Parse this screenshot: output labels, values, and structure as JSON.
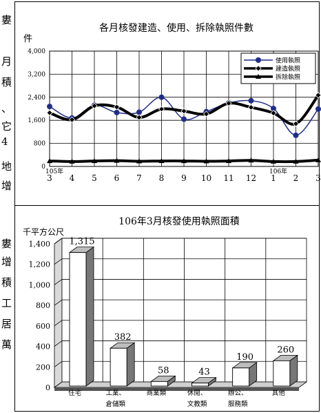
{
  "side_text": [
    "婁",
    "月",
    "積",
    "、",
    "它",
    "4",
    "地",
    "增",
    "婁",
    "增",
    "積",
    "工",
    "居",
    "萬"
  ],
  "chart_data": [
    {
      "type": "line",
      "title": "各月核發建造、使用、拆除執照件數",
      "ylabel": "件",
      "ylim": [
        0,
        4000
      ],
      "yticks": [
        "0",
        "800",
        "1,600",
        "2,400",
        "3,200",
        "4,000"
      ],
      "year_labels": [
        {
          "text": "105年",
          "at_index": 0
        },
        {
          "text": "106年",
          "at_index": 10
        }
      ],
      "x": [
        "3",
        "4",
        "5",
        "6",
        "7",
        "8",
        "9",
        "10",
        "11",
        "12",
        "1",
        "2",
        "3"
      ],
      "legend_position": "top-right",
      "series": [
        {
          "name": "使用執照",
          "color": "#1f2d8a",
          "marker": "circle",
          "width": 1.5,
          "values": [
            2080,
            1680,
            2120,
            1870,
            1880,
            2400,
            1640,
            1900,
            2200,
            2280,
            2010,
            1080,
            1990
          ]
        },
        {
          "name": "建造執照",
          "color": "#000000",
          "marker": "diamond",
          "width": 4,
          "values": [
            1860,
            1620,
            2100,
            2060,
            1700,
            1990,
            1920,
            1820,
            2190,
            2050,
            1850,
            1480,
            2470
          ]
        },
        {
          "name": "拆除執照",
          "color": "#000000",
          "marker": "triangle",
          "width": 4,
          "values": [
            190,
            170,
            190,
            200,
            180,
            190,
            190,
            180,
            190,
            210,
            170,
            170,
            220
          ]
        }
      ]
    },
    {
      "type": "bar",
      "title": "106年3月核發使用執照面積",
      "ylabel": "千平方公尺",
      "ylim": [
        0,
        1400
      ],
      "yticks": [
        "0",
        "200",
        "400",
        "600",
        "800",
        "1,000",
        "1,200",
        "1,400"
      ],
      "categories": [
        [
          "住宅"
        ],
        [
          "工業、",
          "倉儲類"
        ],
        [
          "商業類"
        ],
        [
          "休閒、",
          "文教類"
        ],
        [
          "辦公、",
          "服務類"
        ],
        [
          "其他"
        ]
      ],
      "values": [
        1315,
        382,
        58,
        43,
        190,
        260
      ],
      "value_labels": [
        "1,315",
        "382",
        "58",
        "43",
        "190",
        "260"
      ]
    }
  ]
}
